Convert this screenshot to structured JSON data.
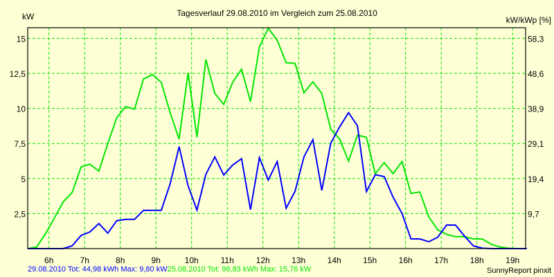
{
  "chart_data": {
    "type": "line",
    "title": "Tagesverlauf 29.08.2010 im Vergleich zum 25.08.2010",
    "ylabel": "kW",
    "ylabel_right": "kW/kWp [%]",
    "xlabel": "",
    "ylim": [
      0,
      15.8
    ],
    "xlim": [
      5.4,
      19.4
    ],
    "grid": true,
    "y_ticks": [
      2.5,
      5,
      7.5,
      10,
      12.5,
      15
    ],
    "y_tick_labels": [
      "2,5",
      "5",
      "7,5",
      "10",
      "12,5",
      "15"
    ],
    "y_right_tick_labels": [
      "9,7",
      "19,4",
      "29,1",
      "38,9",
      "48,6",
      "58,3"
    ],
    "x_ticks": [
      6,
      7,
      8,
      9,
      10,
      11,
      12,
      13,
      14,
      15,
      16,
      17,
      18,
      19
    ],
    "x_tick_labels": [
      "6h",
      "7h",
      "8h",
      "9h",
      "10h",
      "11h",
      "12h",
      "13h",
      "14h",
      "15h",
      "16h",
      "17h",
      "18h",
      "19h"
    ],
    "x": [
      5.4,
      5.65,
      5.9,
      6.15,
      6.4,
      6.65,
      6.9,
      7.15,
      7.4,
      7.65,
      7.9,
      8.15,
      8.4,
      8.65,
      8.9,
      9.15,
      9.4,
      9.65,
      9.9,
      10.15,
      10.4,
      10.65,
      10.9,
      11.15,
      11.4,
      11.65,
      11.9,
      12.15,
      12.4,
      12.65,
      12.9,
      13.15,
      13.4,
      13.65,
      13.9,
      14.15,
      14.4,
      14.65,
      14.9,
      15.15,
      15.4,
      15.65,
      15.9,
      16.15,
      16.4,
      16.65,
      16.9,
      17.15,
      17.4,
      17.65,
      17.9,
      18.15,
      18.4,
      18.65,
      18.9,
      19.15,
      19.4
    ],
    "series": [
      {
        "name": "25.08.2010",
        "color": "#00e600",
        "values": [
          0,
          0.11,
          1.05,
          2.17,
          3.34,
          4.0,
          5.83,
          6.03,
          5.53,
          7.5,
          9.34,
          10.13,
          9.95,
          12.1,
          12.42,
          11.86,
          9.68,
          7.81,
          12.55,
          7.95,
          13.49,
          11.07,
          10.29,
          11.86,
          12.8,
          10.49,
          14.39,
          15.73,
          14.86,
          13.26,
          13.21,
          11.12,
          11.89,
          11.07,
          8.51,
          7.82,
          6.24,
          8.1,
          7.94,
          5.35,
          6.13,
          5.35,
          6.21,
          3.94,
          4.04,
          2.26,
          1.35,
          1.02,
          0.85,
          0.85,
          0.69,
          0.69,
          0.31,
          0.11,
          0.02,
          0,
          0
        ]
      },
      {
        "name": "29.08.2010",
        "color": "#0000ff",
        "values": [
          0,
          0,
          0,
          0,
          0,
          0.2,
          0.94,
          1.19,
          1.79,
          1.1,
          1.99,
          2.09,
          2.09,
          2.73,
          2.73,
          2.73,
          4.64,
          7.28,
          4.48,
          2.75,
          5.3,
          6.54,
          5.25,
          5.96,
          6.42,
          2.78,
          6.49,
          4.89,
          6.21,
          2.88,
          4.1,
          6.54,
          7.77,
          4.15,
          7.52,
          8.68,
          9.7,
          8.76,
          4.07,
          5.27,
          5.14,
          3.66,
          2.5,
          0.69,
          0.69,
          0.49,
          0.81,
          1.68,
          1.68,
          0.9,
          0.2,
          0.03,
          0,
          0,
          0,
          0,
          0
        ]
      }
    ],
    "legend": {
      "blue_text": "29.08.2010 Tot: 44,98 kWh Max: 9,80 kW",
      "green_text": "25.08.2010 Tot: 98,83 kWh Max: 15,76 kW",
      "placement": "bottom-left"
    },
    "credit": "SunnyReport pinxit"
  }
}
